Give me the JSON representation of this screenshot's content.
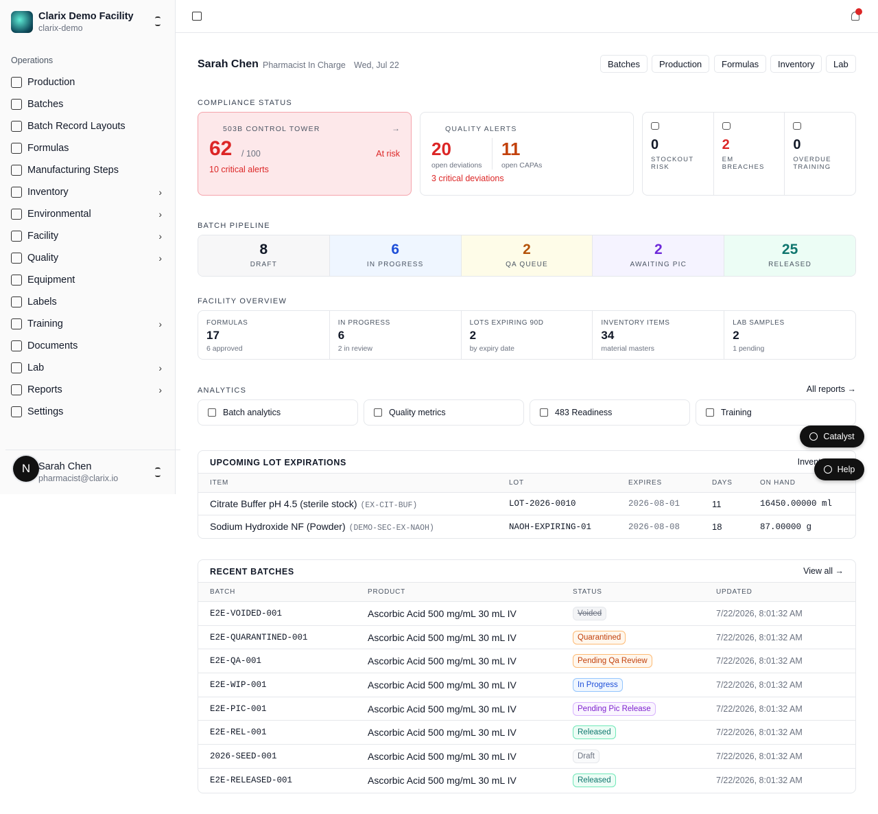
{
  "sidebar": {
    "facility_name": "Clarix Demo Facility",
    "facility_slug": "clarix-demo",
    "section": "Operations",
    "nav": [
      {
        "label": "Production",
        "expandable": false
      },
      {
        "label": "Batches",
        "expandable": false
      },
      {
        "label": "Batch Record Layouts",
        "expandable": false
      },
      {
        "label": "Formulas",
        "expandable": false
      },
      {
        "label": "Manufacturing Steps",
        "expandable": false
      },
      {
        "label": "Inventory",
        "expandable": true
      },
      {
        "label": "Environmental",
        "expandable": true
      },
      {
        "label": "Facility",
        "expandable": true
      },
      {
        "label": "Quality",
        "expandable": true
      },
      {
        "label": "Equipment",
        "expandable": false
      },
      {
        "label": "Labels",
        "expandable": false
      },
      {
        "label": "Training",
        "expandable": true
      },
      {
        "label": "Documents",
        "expandable": false
      },
      {
        "label": "Lab",
        "expandable": true
      },
      {
        "label": "Reports",
        "expandable": true
      },
      {
        "label": "Settings",
        "expandable": false
      }
    ],
    "user": {
      "avatar_initial": "N",
      "name": "Sarah Chen",
      "email": "pharmacist@clarix.io"
    }
  },
  "header": {
    "user_name": "Sarah Chen",
    "role": "Pharmacist In Charge",
    "date": "Wed, Jul 22",
    "quick_links": [
      "Batches",
      "Production",
      "Formulas",
      "Inventory",
      "Lab"
    ]
  },
  "compliance": {
    "title": "COMPLIANCE STATUS",
    "control_tower": {
      "label": "503B CONTROL TOWER",
      "arrow": "→",
      "score": 62,
      "max": "/ 100",
      "status": "At risk",
      "note": "10 critical alerts"
    },
    "quality_alerts": {
      "label": "QUALITY ALERTS",
      "items": [
        {
          "value": 20,
          "label": "open deviations",
          "color": "#dc2626"
        },
        {
          "value": 11,
          "label": "open CAPAs",
          "color": "#c2410c"
        }
      ],
      "note": "3 critical deviations"
    },
    "risks": [
      {
        "value": 0,
        "label": "STOCKOUT RISK",
        "color": "#111827"
      },
      {
        "value": 2,
        "label": "EM BREACHES",
        "color": "#dc2626"
      },
      {
        "value": 0,
        "label": "OVERDUE TRAINING",
        "color": "#111827"
      }
    ]
  },
  "pipeline": {
    "title": "BATCH PIPELINE",
    "stages": [
      {
        "value": 8,
        "label": "DRAFT",
        "color": "#111827"
      },
      {
        "value": 6,
        "label": "IN PROGRESS",
        "color": "#1d4ed8"
      },
      {
        "value": 2,
        "label": "QA QUEUE",
        "color": "#b45309"
      },
      {
        "value": 2,
        "label": "AWAITING PIC",
        "color": "#6d28d9"
      },
      {
        "value": 25,
        "label": "RELEASED",
        "color": "#0f766e"
      }
    ]
  },
  "facility_overview": {
    "title": "FACILITY OVERVIEW",
    "cards": [
      {
        "label": "FORMULAS",
        "value": 17,
        "note": "6 approved"
      },
      {
        "label": "IN PROGRESS",
        "value": 6,
        "note": "2 in review"
      },
      {
        "label": "LOTS EXPIRING 90D",
        "value": 2,
        "note": "by expiry date"
      },
      {
        "label": "INVENTORY ITEMS",
        "value": 34,
        "note": "material masters"
      },
      {
        "label": "LAB SAMPLES",
        "value": 2,
        "note": "1 pending"
      }
    ]
  },
  "analytics": {
    "title": "ANALYTICS",
    "link": "All reports →",
    "items": [
      "Batch analytics",
      "Quality metrics",
      "483 Readiness",
      "Training"
    ]
  },
  "floating": {
    "catalyst": "Catalyst",
    "help": "Help"
  },
  "expirations": {
    "title": "UPCOMING LOT EXPIRATIONS",
    "link": "Inventory →",
    "columns": [
      "ITEM",
      "LOT",
      "EXPIRES",
      "DAYS",
      "ON HAND"
    ],
    "rows": [
      {
        "item": "Citrate Buffer pH 4.5 (sterile stock)",
        "code": "(EX-CIT-BUF)",
        "lot": "LOT-2026-0010",
        "expires": "2026-08-01",
        "days": 11,
        "on_hand": "16450.00000 ml"
      },
      {
        "item": "Sodium Hydroxide NF (Powder)",
        "code": "(DEMO-SEC-EX-NAOH)",
        "lot": "NAOH-EXPIRING-01",
        "expires": "2026-08-08",
        "days": 18,
        "on_hand": "87.00000 g"
      }
    ]
  },
  "recent_batches": {
    "title": "RECENT BATCHES",
    "link": "View all →",
    "columns": [
      "BATCH",
      "PRODUCT",
      "STATUS",
      "UPDATED"
    ],
    "rows": [
      {
        "batch": "E2E-VOIDED-001",
        "product": "Ascorbic Acid 500 mg/mL 30 mL IV",
        "status": "Voided",
        "tone": "voided",
        "updated": "7/22/2026, 8:01:32 AM"
      },
      {
        "batch": "E2E-QUARANTINED-001",
        "product": "Ascorbic Acid 500 mg/mL 30 mL IV",
        "status": "Quarantined",
        "tone": "orange",
        "updated": "7/22/2026, 8:01:32 AM"
      },
      {
        "batch": "E2E-QA-001",
        "product": "Ascorbic Acid 500 mg/mL 30 mL IV",
        "status": "Pending Qa Review",
        "tone": "orange",
        "updated": "7/22/2026, 8:01:32 AM"
      },
      {
        "batch": "E2E-WIP-001",
        "product": "Ascorbic Acid 500 mg/mL 30 mL IV",
        "status": "In Progress",
        "tone": "blue",
        "updated": "7/22/2026, 8:01:32 AM"
      },
      {
        "batch": "E2E-PIC-001",
        "product": "Ascorbic Acid 500 mg/mL 30 mL IV",
        "status": "Pending Pic Release",
        "tone": "purple",
        "updated": "7/22/2026, 8:01:32 AM"
      },
      {
        "batch": "E2E-REL-001",
        "product": "Ascorbic Acid 500 mg/mL 30 mL IV",
        "status": "Released",
        "tone": "green",
        "updated": "7/22/2026, 8:01:32 AM"
      },
      {
        "batch": "2026-SEED-001",
        "product": "Ascorbic Acid 500 mg/mL 30 mL IV",
        "status": "Draft",
        "tone": "gray",
        "updated": "7/22/2026, 8:01:32 AM"
      },
      {
        "batch": "E2E-RELEASED-001",
        "product": "Ascorbic Acid 500 mg/mL 30 mL IV",
        "status": "Released",
        "tone": "green",
        "updated": "7/22/2026, 8:01:32 AM"
      }
    ]
  }
}
